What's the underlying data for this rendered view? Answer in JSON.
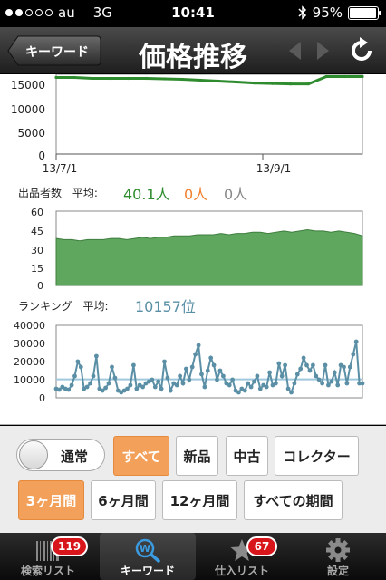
{
  "status_bar": {
    "carrier": "au",
    "network": "3G",
    "time": "10:41",
    "battery": "95%"
  },
  "nav": {
    "back_label": "キーワード",
    "title": "価格推移"
  },
  "price_chart": {
    "y_ticks": [
      "15000",
      "10000",
      "5000",
      "0"
    ],
    "x_ticks": [
      "13/7/1",
      "13/9/1"
    ]
  },
  "sellers": {
    "label": "出品者数",
    "avg_label": "平均:",
    "new_avg": "40.1人",
    "used_avg": "0人",
    "collector_avg": "0人",
    "colors": {
      "new": "#2e8b2e",
      "used": "#f08030",
      "collector": "#888888"
    }
  },
  "ranking": {
    "label": "ランキング",
    "avg_label": "平均:",
    "avg_value": "10157位",
    "color": "#5a8fa6"
  },
  "chart_data": [
    {
      "type": "line",
      "series": [
        {
          "values": [
            16800,
            16800,
            16600,
            16600,
            16600,
            16600,
            16500,
            16400,
            16200,
            16000,
            15800,
            15600,
            15500,
            15400,
            15400,
            17000,
            17000,
            17000
          ]
        }
      ],
      "color": "#2e8b2e",
      "ylim": [
        0,
        17500
      ],
      "x_ticks": [
        "13/7/1",
        "13/9/1"
      ]
    },
    {
      "type": "area",
      "series": [
        {
          "values": [
            38,
            37,
            37,
            36,
            37,
            37,
            37,
            38,
            38,
            37,
            38,
            39,
            38,
            39,
            39,
            40,
            40,
            40,
            41,
            41,
            41,
            42,
            41,
            42,
            42,
            43,
            43,
            42,
            43,
            44,
            43,
            44,
            45,
            44,
            44,
            43,
            44,
            43,
            42,
            40
          ]
        }
      ],
      "color": "#5fa65f",
      "ylim": [
        0,
        60
      ],
      "yticks": [
        60,
        45,
        30,
        15,
        0
      ]
    },
    {
      "type": "line",
      "series": [
        {
          "values": [
            5000,
            4500,
            6000,
            5000,
            4500,
            7000,
            12000,
            20000,
            17000,
            5000,
            6000,
            8000,
            12000,
            23000,
            5000,
            4000,
            5500,
            8000,
            17000,
            11000,
            4000,
            3000,
            4000,
            5000,
            7000,
            18000,
            5000,
            7000,
            6000,
            8000,
            9000,
            10000,
            6000,
            9000,
            5000,
            20000,
            11000,
            4000,
            8000,
            7000,
            12000,
            8000,
            16000,
            10000,
            17000,
            24000,
            29000,
            13000,
            6000,
            15000,
            22000,
            18000,
            10000,
            15000,
            12000,
            8000,
            7000,
            10000,
            4000,
            3000,
            5000,
            4000,
            8000,
            6000,
            9000,
            12000,
            5000,
            7000,
            6000,
            14000,
            7000,
            8000,
            19000,
            12000,
            18000,
            5000,
            3000,
            8000,
            13000,
            16000,
            22000,
            18000,
            15000,
            18000,
            12000,
            10000,
            8000,
            18000,
            7000,
            9000,
            14000,
            7000,
            18000,
            17000,
            8000,
            17000,
            24000,
            31000,
            8000,
            8000
          ]
        }
      ],
      "color": "#5a8fa6",
      "ylim": [
        0,
        40000
      ],
      "yticks": [
        40000,
        30000,
        20000,
        10000,
        0
      ],
      "hline": 10157
    }
  ],
  "filters": {
    "toggle_label": "通常",
    "condition": [
      "すべて",
      "新品",
      "中古",
      "コレクター"
    ],
    "period": [
      "3ヶ月間",
      "6ヶ月間",
      "12ヶ月間",
      "すべての期間"
    ]
  },
  "tabs": [
    {
      "label": "検索リスト",
      "badge": "119",
      "icon": "barcode-icon"
    },
    {
      "label": "キーワード",
      "icon": "keyword-search-icon"
    },
    {
      "label": "仕入リスト",
      "badge": "67",
      "icon": "star-icon"
    },
    {
      "label": "設定",
      "icon": "gear-icon"
    }
  ]
}
